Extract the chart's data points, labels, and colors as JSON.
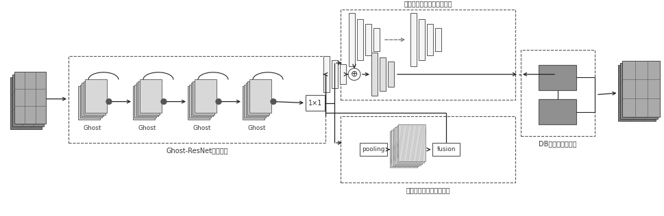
{
  "bg_color": "#ffffff",
  "ghost_resnet_label": "Ghost-ResNet骨干网络",
  "fpn_label": "特征金字塔和特征融合模块",
  "bilinear_label": "双线性特征向量融合模块",
  "db_label": "DB语义分割检测头",
  "ghost_labels": [
    "Ghost",
    "Ghost",
    "Ghost",
    "Ghost"
  ],
  "conv1x1_label": "1×1",
  "pooling_label": "pooling",
  "fusion_label": "fusion",
  "add_symbol": "⊕",
  "line_color": "#222222",
  "dashed_color": "#666666",
  "edge_color": "#555555",
  "ghost_face_colors": [
    "#b0b0b0",
    "#c0c0c0",
    "#d0d0d0",
    "#e0e0e0"
  ],
  "db_box_color": "#909090",
  "bar_face_color": "#f5f5f5",
  "merged_bar_color": "#e0e0e0",
  "cube_color": "#d8d8d8"
}
